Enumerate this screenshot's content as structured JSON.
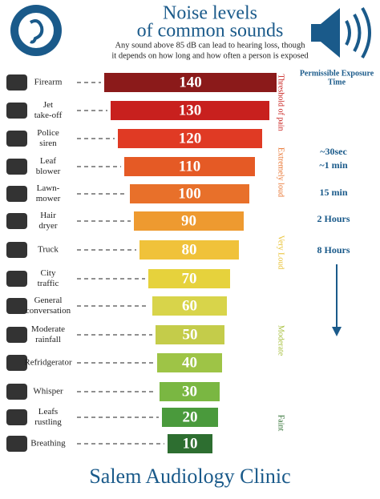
{
  "header": {
    "title_lines": [
      "Noise levels",
      "of common sounds"
    ],
    "subtitle_lines": [
      "Any sound above 85 dB can lead to hearing loss, though",
      "it depends on how long and how often a person is exposed"
    ]
  },
  "rows": [
    {
      "label_lines": [
        "Firearm"
      ],
      "level": 140,
      "color": "#8b1a1a"
    },
    {
      "label_lines": [
        "Jet",
        "take-off"
      ],
      "level": 130,
      "color": "#c8201e"
    },
    {
      "label_lines": [
        "Police",
        "siren"
      ],
      "level": 120,
      "color": "#e03a24"
    },
    {
      "label_lines": [
        "Leaf",
        "blower"
      ],
      "level": 110,
      "color": "#e55a25"
    },
    {
      "label_lines": [
        "Lawn-",
        "mower"
      ],
      "level": 100,
      "color": "#e8702a"
    },
    {
      "label_lines": [
        "Hair",
        "dryer"
      ],
      "level": 90,
      "color": "#ee9a30"
    },
    {
      "label_lines": [
        "Truck"
      ],
      "level": 80,
      "color": "#f0c23a"
    },
    {
      "label_lines": [
        "City",
        "traffic"
      ],
      "level": 70,
      "color": "#e6d23c"
    },
    {
      "label_lines": [
        "General",
        "conversation"
      ],
      "level": 60,
      "color": "#d8d44a"
    },
    {
      "label_lines": [
        "Moderate",
        "rainfall"
      ],
      "level": 50,
      "color": "#c4cc4a"
    },
    {
      "label_lines": [
        "Refridgerator"
      ],
      "level": 40,
      "color": "#9ec446"
    },
    {
      "label_lines": [
        "Whisper"
      ],
      "level": 30,
      "color": "#7ab742"
    },
    {
      "label_lines": [
        "Leafs",
        "rustling"
      ],
      "level": 20,
      "color": "#4a9a3c"
    },
    {
      "label_lines": [
        "Breathing"
      ],
      "level": 10,
      "color": "#2d6e30"
    }
  ],
  "zones": [
    {
      "label": "Threshold of pain",
      "color": "#c8201e"
    },
    {
      "label": "Extremely loud",
      "color": "#e8702a"
    },
    {
      "label": "Very Loud",
      "color": "#e8c030"
    },
    {
      "label": "Moderate",
      "color": "#a8c040"
    },
    {
      "label": "Faint",
      "color": "#2d6e30"
    }
  ],
  "exposure": {
    "title_lines": [
      "Permissible Exposure",
      "Time"
    ],
    "times": [
      "~30sec",
      "~1 min",
      "15 min",
      "2 Hours",
      "8 Hours"
    ]
  },
  "footer": "Salem Audiology Clinic"
}
